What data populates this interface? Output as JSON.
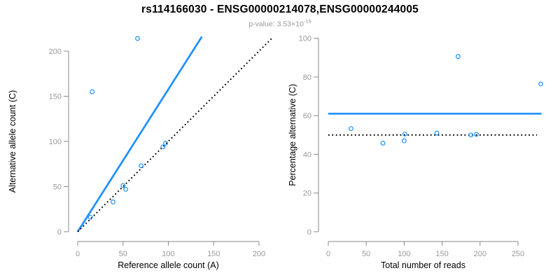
{
  "header": {
    "title": "rs114166030 - ENSG00000214078,ENSG00000244005",
    "pvalue_prefix": "p-value: 3.53×10",
    "pvalue_exponent": "-15"
  },
  "colors": {
    "accent_blue": "#1E90FF",
    "axis_gray": "#888888",
    "tick_label_gray": "#999999",
    "text_black": "#000000"
  },
  "chart_data": [
    {
      "type": "scatter",
      "panel": "left",
      "xlabel": "Reference allele count (A)",
      "ylabel": "Alternative allele count (C)",
      "xlim": [
        0,
        200
      ],
      "ylim": [
        0,
        200
      ],
      "xticks": [
        0,
        50,
        100,
        150,
        200
      ],
      "yticks": [
        0,
        50,
        100,
        150,
        200
      ],
      "grid": false,
      "legend": null,
      "points": [
        [
          14,
          16
        ],
        [
          16,
          155
        ],
        [
          39,
          33
        ],
        [
          50,
          51
        ],
        [
          53,
          47
        ],
        [
          66,
          214
        ],
        [
          70,
          73
        ],
        [
          94,
          94
        ],
        [
          97,
          98
        ]
      ],
      "lines": [
        {
          "name": "fitted-ratio-line",
          "style": "solid",
          "color": "accent_blue",
          "from": [
            0,
            0
          ],
          "to": [
            137,
            216
          ]
        },
        {
          "name": "identity-line",
          "style": "dotted",
          "color": "text_black",
          "from": [
            0,
            0
          ],
          "to": [
            214,
            214
          ]
        }
      ]
    },
    {
      "type": "scatter",
      "panel": "right",
      "xlabel": "Total number of reads",
      "ylabel": "Percentage alternative (C)",
      "xlim": [
        0,
        250
      ],
      "ylim": [
        0,
        100
      ],
      "xticks": [
        0,
        50,
        100,
        150,
        200,
        250
      ],
      "yticks": [
        0,
        20,
        40,
        60,
        80,
        100
      ],
      "grid": false,
      "legend": null,
      "points": [
        [
          30,
          53.3
        ],
        [
          72,
          45.8
        ],
        [
          100,
          47
        ],
        [
          101,
          50.5
        ],
        [
          143,
          51
        ],
        [
          171,
          90.6
        ],
        [
          188,
          50
        ],
        [
          195,
          50.3
        ],
        [
          280,
          76.4
        ]
      ],
      "lines": [
        {
          "name": "mean-percentage-line",
          "style": "solid",
          "color": "accent_blue",
          "from": [
            0,
            61
          ],
          "to": [
            281,
            61
          ]
        },
        {
          "name": "fifty-percent-line",
          "style": "dotted",
          "color": "text_black",
          "from": [
            0,
            50
          ],
          "to": [
            275,
            50
          ]
        }
      ]
    }
  ]
}
